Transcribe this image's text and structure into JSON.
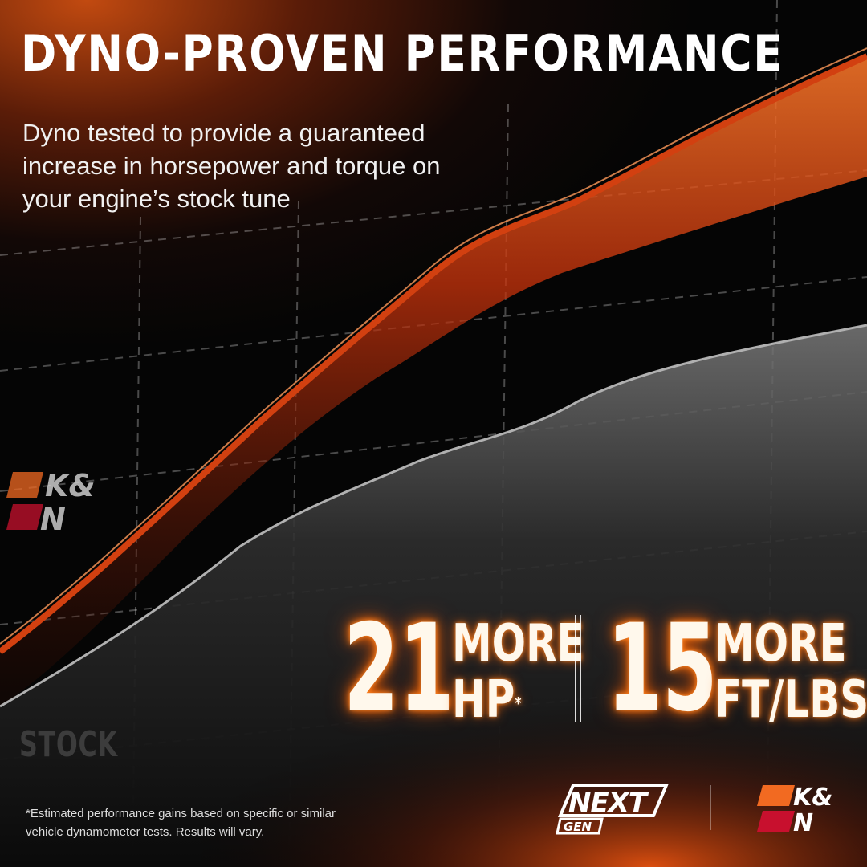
{
  "headline": {
    "title": "DYNO-PROVEN PERFORMANCE",
    "subtitle": "Dyno tested to provide a guaranteed increase in horsepower and torque on your engine’s stock tune"
  },
  "graph": {
    "stock_label": "STOCK",
    "colors": {
      "kn_curve": "#e04a10",
      "stock_curve": "#8a8a8a",
      "accent": "#ff6a00"
    }
  },
  "stats": [
    {
      "number": "21",
      "word": "MORE",
      "unit": "HP",
      "mark": "*"
    },
    {
      "number": "15",
      "word": "MORE",
      "unit": "FT/LBS",
      "mark": "*"
    }
  ],
  "footnote": "*Estimated performance gains based on specific or similar vehicle dynamometer tests. Results will vary.",
  "logos": {
    "kn_top": "K&N",
    "kn_bottom": "K&N",
    "nextgen": "NEXT GEN",
    "colors": {
      "orange": "#f26a21",
      "red": "#c8102e"
    }
  }
}
